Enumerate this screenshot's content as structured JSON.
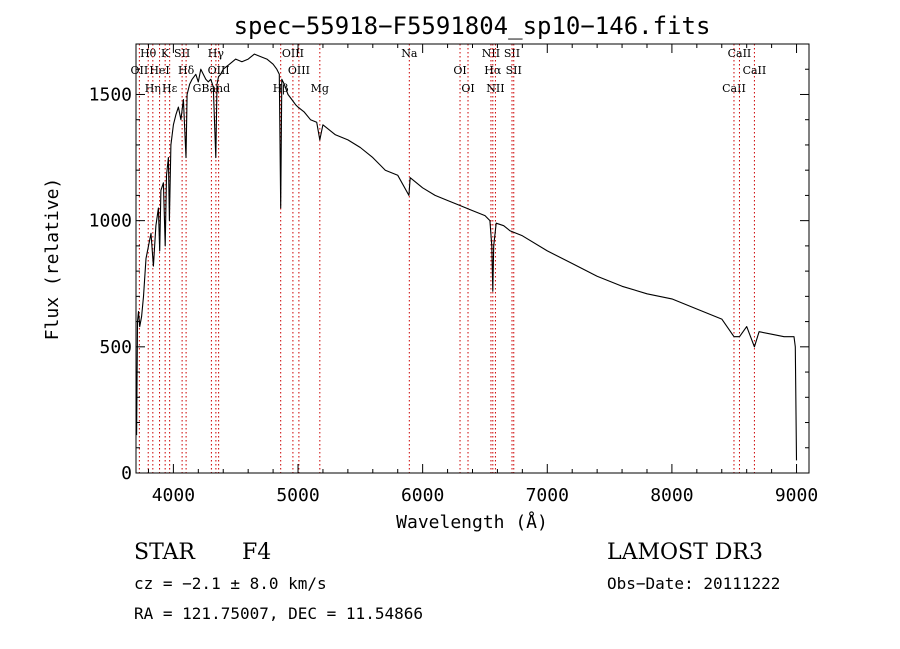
{
  "chart_data": {
    "type": "line",
    "title": "spec−55918−F5591804_sp10−146.fits",
    "xlabel": "Wavelength (Å)",
    "ylabel": "Flux (relative)",
    "xlim": [
      3700,
      9100
    ],
    "ylim": [
      0,
      1700
    ],
    "x_ticks": [
      4000,
      5000,
      6000,
      7000,
      8000,
      9000
    ],
    "x_tick_labels": [
      "4000",
      "5000",
      "6000",
      "7000",
      "8000",
      "9000"
    ],
    "y_ticks": [
      0,
      500,
      1000,
      1500
    ],
    "y_tick_labels": [
      "0",
      "500",
      "1000",
      "1500"
    ],
    "series": [
      {
        "name": "flux",
        "x": [
          3705,
          3712,
          3720,
          3730,
          3745,
          3760,
          3780,
          3800,
          3820,
          3840,
          3860,
          3880,
          3890,
          3900,
          3920,
          3934,
          3945,
          3960,
          3968,
          3980,
          4000,
          4020,
          4040,
          4060,
          4080,
          4101,
          4110,
          4130,
          4150,
          4180,
          4200,
          4220,
          4240,
          4260,
          4280,
          4300,
          4320,
          4340,
          4350,
          4362,
          4380,
          4400,
          4450,
          4500,
          4550,
          4600,
          4650,
          4700,
          4750,
          4800,
          4830,
          4850,
          4861,
          4870,
          4890,
          4920,
          4950,
          4980,
          5000,
          5050,
          5100,
          5150,
          5175,
          5200,
          5300,
          5400,
          5500,
          5600,
          5700,
          5800,
          5890,
          5900,
          6000,
          6100,
          6200,
          6300,
          6400,
          6500,
          6540,
          6555,
          6563,
          6570,
          6590,
          6650,
          6700,
          6800,
          7000,
          7200,
          7400,
          7600,
          7800,
          8000,
          8200,
          8400,
          8498,
          8542,
          8600,
          8662,
          8700,
          8800,
          8900,
          8980,
          8990,
          9000
        ],
        "values": [
          150,
          600,
          640,
          580,
          620,
          700,
          850,
          900,
          950,
          820,
          980,
          1050,
          880,
          1120,
          1150,
          900,
          1180,
          1250,
          1000,
          1300,
          1380,
          1420,
          1450,
          1400,
          1480,
          1250,
          1500,
          1540,
          1560,
          1580,
          1550,
          1600,
          1580,
          1560,
          1550,
          1560,
          1530,
          1250,
          1540,
          1570,
          1580,
          1600,
          1620,
          1640,
          1630,
          1640,
          1660,
          1650,
          1640,
          1620,
          1600,
          1580,
          1050,
          1560,
          1540,
          1500,
          1480,
          1460,
          1450,
          1430,
          1400,
          1390,
          1320,
          1380,
          1340,
          1320,
          1290,
          1250,
          1200,
          1180,
          1100,
          1170,
          1130,
          1100,
          1080,
          1060,
          1040,
          1020,
          1000,
          900,
          720,
          900,
          990,
          980,
          960,
          940,
          880,
          830,
          780,
          740,
          710,
          690,
          650,
          610,
          540,
          540,
          580,
          500,
          560,
          550,
          540,
          540,
          500,
          50
        ]
      }
    ],
    "line_markers": [
      {
        "label": "Hθ",
        "x": 3798
      },
      {
        "label": "OII",
        "x": 3727
      },
      {
        "label": "Hη",
        "x": 3835
      },
      {
        "label": "K",
        "x": 3934
      },
      {
        "label": "HeI",
        "x": 3889
      },
      {
        "label": "Hε",
        "x": 3970
      },
      {
        "label": "SII",
        "x": 4070
      },
      {
        "label": "Hδ",
        "x": 4102
      },
      {
        "label": "GBand",
        "x": 4305
      },
      {
        "label": "Hγ",
        "x": 4341
      },
      {
        "label": "OIII",
        "x": 4363
      },
      {
        "label": "Hβ",
        "x": 4861
      },
      {
        "label": "OIII",
        "x": 4959
      },
      {
        "label": "OIII",
        "x": 5007
      },
      {
        "label": "Mg",
        "x": 5175
      },
      {
        "label": "Na",
        "x": 5893
      },
      {
        "label": "OI",
        "x": 6300
      },
      {
        "label": "OI",
        "x": 6364
      },
      {
        "label": "NII",
        "x": 6548
      },
      {
        "label": "Hα",
        "x": 6563
      },
      {
        "label": "NII",
        "x": 6584
      },
      {
        "label": "SII",
        "x": 6717
      },
      {
        "label": "SII",
        "x": 6731
      },
      {
        "label": "CaII",
        "x": 8498
      },
      {
        "label": "CaII",
        "x": 8542
      },
      {
        "label": "CaII",
        "x": 8662
      }
    ]
  },
  "info": {
    "object_class": "STAR",
    "subclass": "F4",
    "survey": "LAMOST DR3",
    "cz": "cz = −2.1 ± 8.0 km/s",
    "obs_date": "Obs−Date: 20111222",
    "radec": "RA = 121.75007, DEC =  11.54866"
  },
  "colors": {
    "axes": "#000000",
    "spectrum": "#000000",
    "line_markers": "#cc0000",
    "background": "#ffffff"
  }
}
